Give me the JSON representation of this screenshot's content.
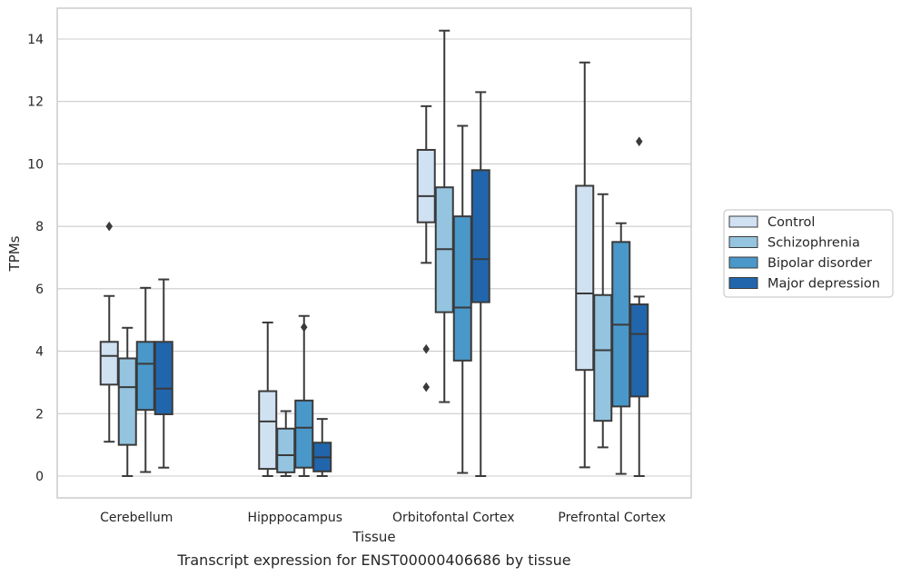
{
  "chart_data": {
    "type": "box",
    "title": "",
    "caption": "Transcript expression for ENST00000406686 by tissue",
    "xlabel": "Tissue",
    "ylabel": "TPMs",
    "ylim": [
      -0.7,
      15.0
    ],
    "yticks": [
      0,
      2,
      4,
      6,
      8,
      10,
      12,
      14
    ],
    "grid": "horizontal",
    "legend_position": "right",
    "categories": [
      "Cerebellum",
      "Hipppocampus",
      "Orbitofontal Cortex",
      "Prefrontal Cortex"
    ],
    "series": [
      {
        "name": "Control",
        "color": "#d0e1f2",
        "boxes": [
          {
            "whisker_low": 1.1,
            "q1": 2.93,
            "median": 3.85,
            "q3": 4.3,
            "whisker_high": 5.77,
            "outliers": [
              8.0
            ]
          },
          {
            "whisker_low": 0.0,
            "q1": 0.23,
            "median": 1.75,
            "q3": 2.72,
            "whisker_high": 4.92,
            "outliers": []
          },
          {
            "whisker_low": 6.83,
            "q1": 8.13,
            "median": 8.97,
            "q3": 10.45,
            "whisker_high": 11.85,
            "outliers": [
              4.07,
              2.85
            ]
          },
          {
            "whisker_low": 0.28,
            "q1": 3.4,
            "median": 5.85,
            "q3": 9.3,
            "whisker_high": 13.25,
            "outliers": []
          }
        ]
      },
      {
        "name": "Schizophrenia",
        "color": "#94c4df",
        "boxes": [
          {
            "whisker_low": 0.0,
            "q1": 1.0,
            "median": 2.85,
            "q3": 3.77,
            "whisker_high": 4.75,
            "outliers": []
          },
          {
            "whisker_low": 0.0,
            "q1": 0.12,
            "median": 0.67,
            "q3": 1.52,
            "whisker_high": 2.08,
            "outliers": []
          },
          {
            "whisker_low": 2.37,
            "q1": 5.25,
            "median": 7.27,
            "q3": 9.25,
            "whisker_high": 14.27,
            "outliers": []
          },
          {
            "whisker_low": 0.92,
            "q1": 1.77,
            "median": 4.03,
            "q3": 5.8,
            "whisker_high": 9.03,
            "outliers": []
          }
        ]
      },
      {
        "name": "Bipolar disorder",
        "color": "#4a98c9",
        "boxes": [
          {
            "whisker_low": 0.13,
            "q1": 2.12,
            "median": 3.6,
            "q3": 4.3,
            "whisker_high": 6.03,
            "outliers": []
          },
          {
            "whisker_low": 0.0,
            "q1": 0.27,
            "median": 1.55,
            "q3": 2.42,
            "whisker_high": 5.13,
            "outliers": [
              4.77
            ]
          },
          {
            "whisker_low": 0.1,
            "q1": 3.7,
            "median": 5.4,
            "q3": 8.32,
            "whisker_high": 11.22,
            "outliers": []
          },
          {
            "whisker_low": 0.07,
            "q1": 2.23,
            "median": 4.85,
            "q3": 7.5,
            "whisker_high": 8.1,
            "outliers": []
          }
        ]
      },
      {
        "name": "Major depression",
        "color": "#2166ac",
        "boxes": [
          {
            "whisker_low": 0.27,
            "q1": 1.98,
            "median": 2.8,
            "q3": 4.3,
            "whisker_high": 6.3,
            "outliers": []
          },
          {
            "whisker_low": 0.0,
            "q1": 0.15,
            "median": 0.6,
            "q3": 1.07,
            "whisker_high": 1.83,
            "outliers": []
          },
          {
            "whisker_low": 0.0,
            "q1": 5.57,
            "median": 6.95,
            "q3": 9.8,
            "whisker_high": 12.3,
            "outliers": []
          },
          {
            "whisker_low": 0.0,
            "q1": 2.55,
            "median": 4.55,
            "q3": 5.5,
            "whisker_high": 5.75,
            "outliers": [
              10.72
            ]
          }
        ]
      }
    ]
  }
}
